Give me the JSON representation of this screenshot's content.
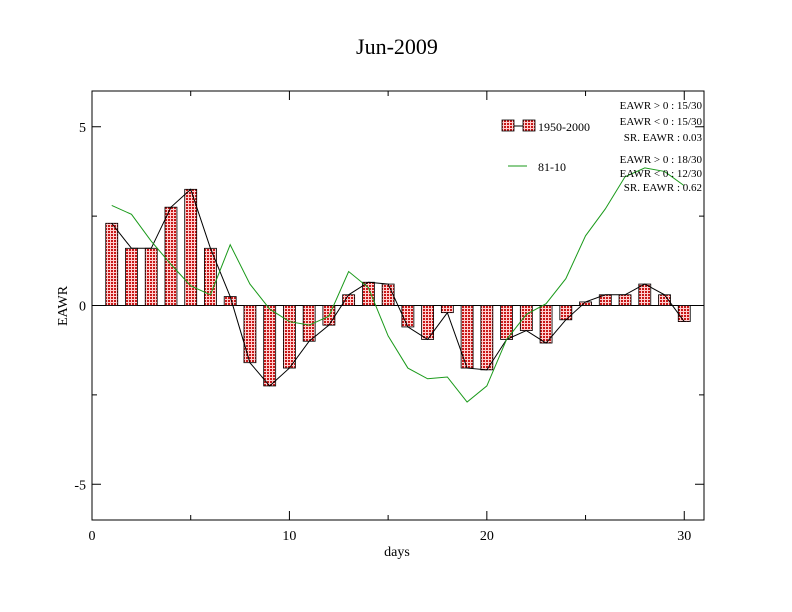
{
  "chart_data": {
    "type": "bar",
    "title": "Jun-2009",
    "xlabel": "days",
    "ylabel": "EAWR",
    "xlim": [
      0,
      31
    ],
    "ylim": [
      -6,
      6
    ],
    "x_ticks": [
      0,
      10,
      20,
      30
    ],
    "x_tick_labels": [
      "0",
      "10",
      "20",
      "30"
    ],
    "y_ticks": [
      -5,
      0,
      5
    ],
    "y_tick_labels": [
      "-5",
      "0",
      "5"
    ],
    "grid": false,
    "legend_position": "top-right",
    "x": [
      1,
      2,
      3,
      4,
      5,
      6,
      7,
      8,
      9,
      10,
      11,
      12,
      13,
      14,
      15,
      16,
      17,
      18,
      19,
      20,
      21,
      22,
      23,
      24,
      25,
      26,
      27,
      28,
      29,
      30
    ],
    "series": [
      {
        "name": "1950-2000",
        "type": "bar",
        "color": "#f08080",
        "values": [
          2.3,
          1.6,
          1.6,
          2.75,
          3.25,
          1.6,
          0.25,
          -1.6,
          -2.25,
          -1.75,
          -1.0,
          -0.55,
          0.3,
          0.65,
          0.6,
          -0.6,
          -0.95,
          -0.2,
          -1.75,
          -1.8,
          -0.95,
          -0.7,
          -1.05,
          -0.4,
          0.1,
          0.3,
          0.3,
          0.6,
          0.3,
          -0.45
        ]
      },
      {
        "name": "81-10",
        "type": "line",
        "color": "#1a9a1a",
        "values": [
          2.8,
          2.55,
          1.8,
          1.15,
          0.55,
          0.3,
          1.7,
          0.6,
          -0.1,
          -0.45,
          -0.55,
          -0.3,
          0.95,
          0.5,
          -0.85,
          -1.75,
          -2.05,
          -2.0,
          -2.7,
          -2.25,
          -0.95,
          -0.25,
          0.05,
          0.75,
          1.95,
          2.7,
          3.6,
          3.85,
          3.75,
          3.35
        ]
      }
    ],
    "legend_entries": [
      "1950-2000",
      "81-10"
    ],
    "stats": [
      [
        "EAWR > 0 : 15/30",
        "EAWR < 0 : 15/30",
        "SR. EAWR :  0.03"
      ],
      [
        "EAWR > 0 : 18/30",
        "EAWR < 0 : 12/30",
        "SR. EAWR :  0.62"
      ]
    ]
  }
}
